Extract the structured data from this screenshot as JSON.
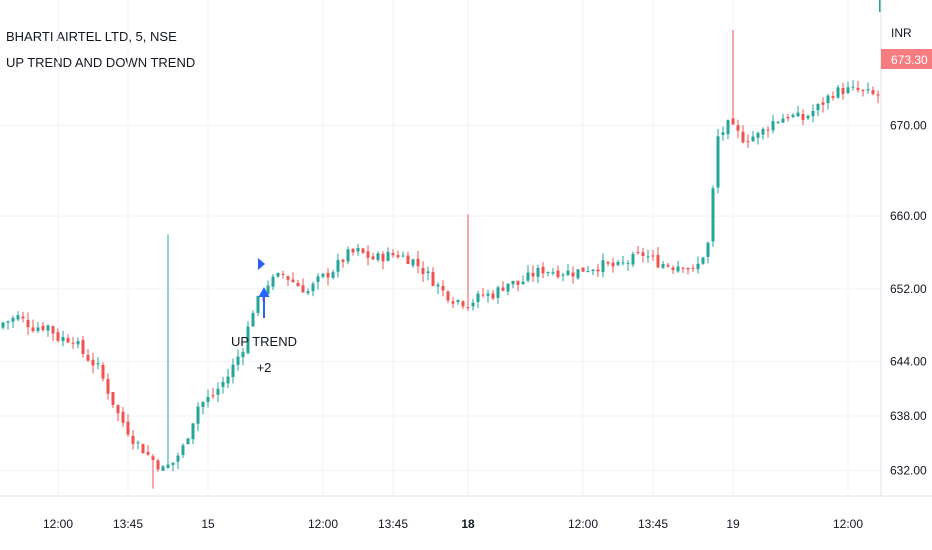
{
  "chart_header": {
    "symbol_line": "BHARTI AIRTEL LTD, 5, NSE",
    "indicator_name": "UP TREND AND DOWN TREND"
  },
  "price_axis": {
    "currency": "INR",
    "last_price_label": "673.30",
    "tick_labels": [
      "670.00",
      "660.00",
      "652.00",
      "644.00",
      "638.00",
      "632.00"
    ]
  },
  "time_axis": {
    "tick_labels": [
      "12:00",
      "13:45",
      "15",
      "12:00",
      "13:45",
      "18",
      "12:00",
      "13:45",
      "19",
      "12:00"
    ],
    "bold_labels": [
      "18"
    ]
  },
  "annotation": {
    "line1": "UP TREND",
    "line2": "+2"
  },
  "colors": {
    "up": "#26a69a",
    "down": "#ef5350",
    "signal": "#2962ff",
    "last_price_badge": "#f77c80",
    "grid": "#f0f3fa",
    "axis_text": "#131722"
  },
  "chart_data": {
    "type": "candlestick",
    "symbol": "BHARTI AIRTEL LTD",
    "interval": "5",
    "exchange": "NSE",
    "currency": "INR",
    "y_ticks": [
      670,
      660,
      652,
      644,
      638,
      632
    ],
    "ylim": [
      629.3,
      683.8
    ],
    "last_price": 673.3,
    "x_tick_labels": [
      "12:00",
      "13:45",
      "15",
      "12:00",
      "13:45",
      "18",
      "12:00",
      "13:45",
      "19",
      "12:00"
    ],
    "close_path": [
      [
        0,
        648.3
      ],
      [
        3,
        648.9
      ],
      [
        6,
        647.8
      ],
      [
        9,
        647.9
      ],
      [
        11,
        646.6
      ],
      [
        14,
        646.5
      ],
      [
        16,
        644.9
      ],
      [
        19,
        643.3
      ],
      [
        21,
        640.8
      ],
      [
        23,
        638.2
      ],
      [
        26,
        635.5
      ],
      [
        29,
        633.7
      ],
      [
        32,
        632.1
      ],
      [
        34,
        632.9
      ],
      [
        36,
        634.5
      ],
      [
        39,
        639.1
      ],
      [
        42,
        640.3
      ],
      [
        45,
        642.4
      ],
      [
        48,
        645.6
      ],
      [
        50,
        649.7
      ],
      [
        53,
        652.6
      ],
      [
        56,
        653.6
      ],
      [
        59,
        652.4
      ],
      [
        61,
        651.7
      ],
      [
        63,
        652.9
      ],
      [
        66,
        654.1
      ],
      [
        69,
        655.8
      ],
      [
        71,
        656.1
      ],
      [
        74,
        655.3
      ],
      [
        77,
        655.7
      ],
      [
        79,
        655.8
      ],
      [
        82,
        655.1
      ],
      [
        85,
        653.5
      ],
      [
        88,
        651.7
      ],
      [
        90,
        650.9
      ],
      [
        93,
        650.4
      ],
      [
        96,
        651.3
      ],
      [
        98,
        651.4
      ],
      [
        101,
        652.7
      ],
      [
        103,
        652.5
      ],
      [
        106,
        653.6
      ],
      [
        108,
        654.1
      ],
      [
        111,
        653.9
      ],
      [
        114,
        653.8
      ],
      [
        117,
        654.3
      ],
      [
        120,
        654.6
      ],
      [
        123,
        654.4
      ],
      [
        126,
        655.3
      ],
      [
        128,
        655.8
      ],
      [
        131,
        654.9
      ],
      [
        134,
        654.5
      ],
      [
        136,
        654.8
      ],
      [
        138,
        653.9
      ],
      [
        139,
        654.6
      ],
      [
        141,
        656.9
      ],
      [
        142,
        662.8
      ],
      [
        143,
        668.7
      ],
      [
        145,
        670.0
      ],
      [
        148,
        668.6
      ],
      [
        151,
        668.9
      ],
      [
        154,
        670.4
      ],
      [
        157,
        671.1
      ],
      [
        160,
        670.7
      ],
      [
        163,
        672.0
      ],
      [
        166,
        673.6
      ],
      [
        168,
        673.9
      ],
      [
        171,
        673.8
      ],
      [
        174,
        673.3
      ]
    ],
    "signals": [
      {
        "label": "UP TREND",
        "value": "+2",
        "direction": "up",
        "bar_index": 56
      }
    ]
  }
}
